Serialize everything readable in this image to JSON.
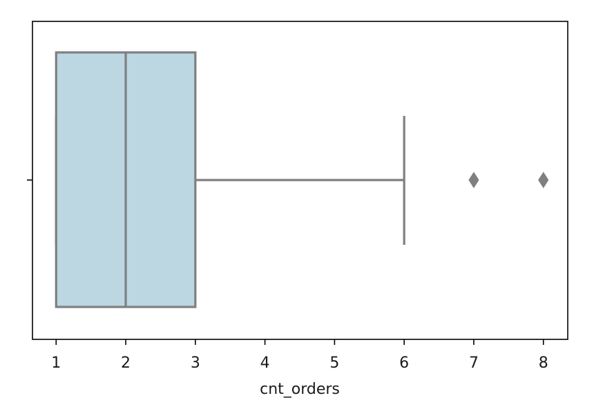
{
  "chart_data": {
    "type": "box",
    "orientation": "horizontal",
    "xlabel": "cnt_orders",
    "ylabel": "",
    "title": "",
    "xlim": [
      0.66,
      8.35
    ],
    "xticks": [
      1,
      2,
      3,
      4,
      5,
      6,
      7,
      8
    ],
    "grid": false,
    "box": {
      "whisker_low": 1,
      "q1": 1,
      "median": 2,
      "q3": 3,
      "whisker_high": 6,
      "outliers": [
        7,
        8
      ]
    },
    "colors": {
      "box_fill": "#bcd6e2",
      "line": "#7f7f7f",
      "axis": "#000000"
    }
  }
}
